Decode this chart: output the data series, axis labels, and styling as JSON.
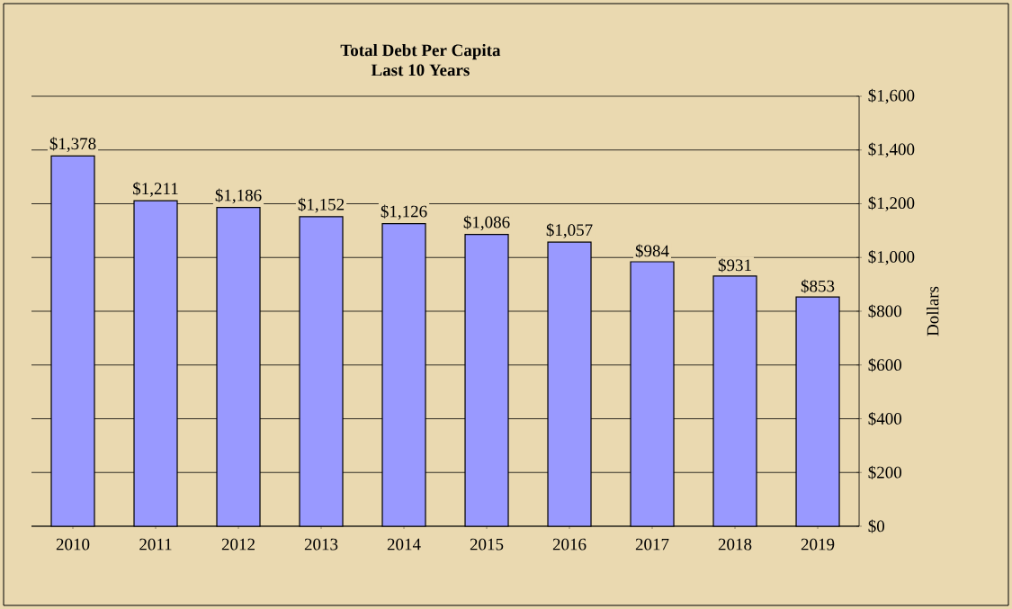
{
  "chart_data": {
    "type": "bar",
    "title": "Total Debt Per Capita",
    "subtitle": "Last 10 Years",
    "ylabel": "Dollars",
    "categories": [
      "2010",
      "2011",
      "2012",
      "2013",
      "2014",
      "2015",
      "2016",
      "2017",
      "2018",
      "2019"
    ],
    "values": [
      1378,
      1211,
      1186,
      1152,
      1126,
      1086,
      1057,
      984,
      931,
      853
    ],
    "value_labels": [
      "$1,378",
      "$1,211",
      "$1,186",
      "$1,152",
      "$1,126",
      "$1,086",
      "$1,057",
      "$984",
      "$931",
      "$853"
    ],
    "color": "#9999ff",
    "ylim": [
      0,
      1600
    ],
    "yticks": [
      {
        "value": 0,
        "label": "$0"
      },
      {
        "value": 200,
        "label": "$200"
      },
      {
        "value": 400,
        "label": "$400"
      },
      {
        "value": 600,
        "label": "$600"
      },
      {
        "value": 800,
        "label": "$800"
      },
      {
        "value": 1000,
        "label": "$1,000"
      },
      {
        "value": 1200,
        "label": "$1,200"
      },
      {
        "value": 1400,
        "label": "$1,400"
      },
      {
        "value": 1600,
        "label": "$1,600"
      }
    ],
    "grid": "y"
  }
}
